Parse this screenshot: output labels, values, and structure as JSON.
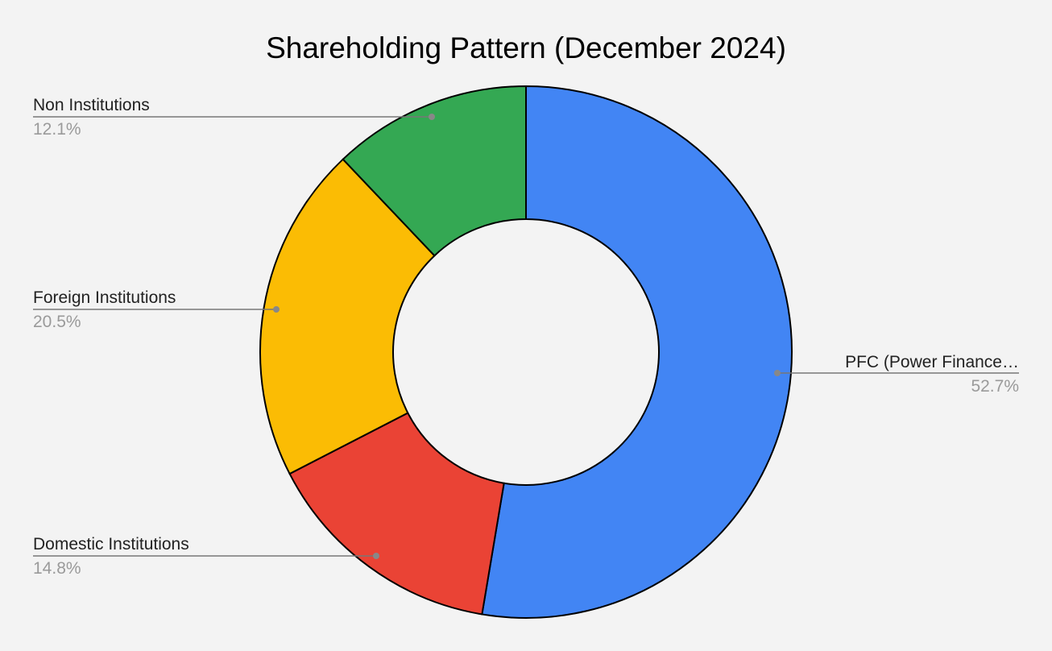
{
  "chart_data": {
    "type": "pie",
    "variant": "donut",
    "title": "Shareholding Pattern (December 2024)",
    "legend": "labels beside slices with leader lines",
    "slices": [
      {
        "name": "PFC (Power Finance…",
        "value": 52.7,
        "label": "52.7%",
        "color": "#4285f4"
      },
      {
        "name": "Domestic Institutions",
        "value": 14.8,
        "label": "14.8%",
        "color": "#ea4335"
      },
      {
        "name": "Foreign Institutions",
        "value": 20.5,
        "label": "20.5%",
        "color": "#fbbc04"
      },
      {
        "name": "Non Institutions",
        "value": 12.1,
        "label": "12.1%",
        "color": "#34a853"
      }
    ]
  }
}
